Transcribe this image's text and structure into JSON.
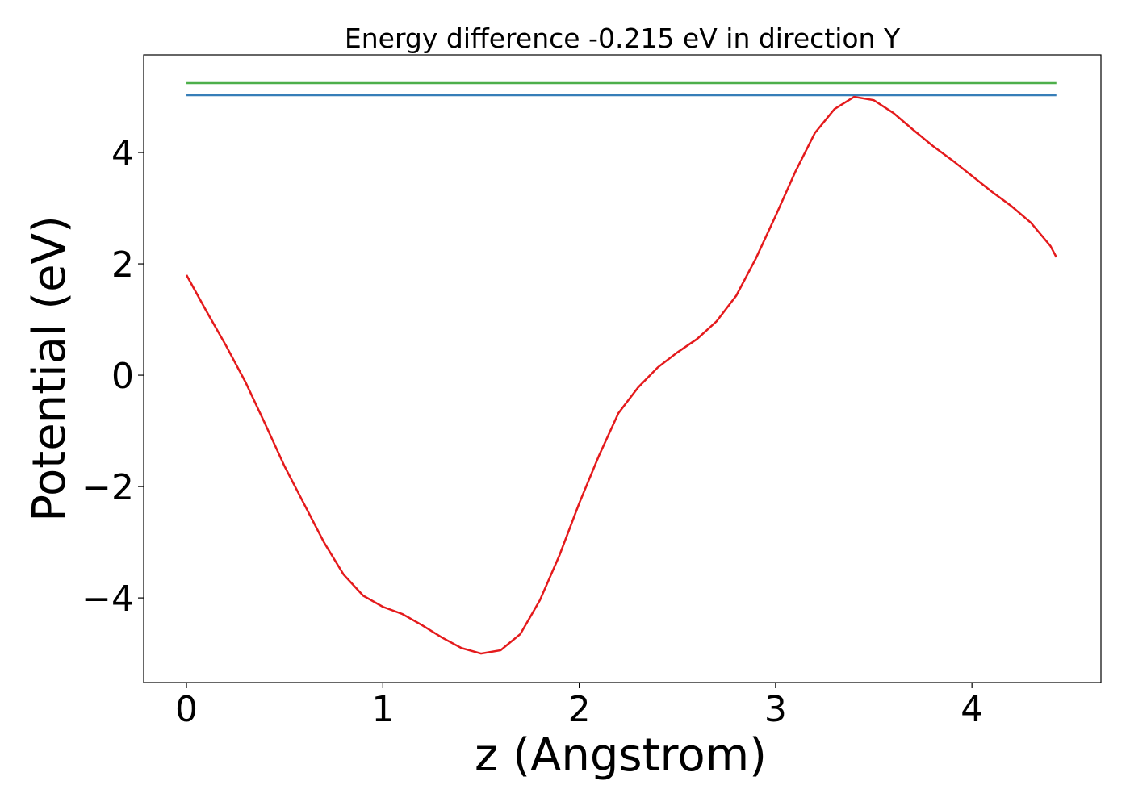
{
  "chart_data": {
    "type": "line",
    "title": "Energy difference -0.215 eV in direction Y",
    "xlabel": "z (Angstrom)",
    "ylabel": "Potential (eV)",
    "xlim": [
      -0.218,
      4.657
    ],
    "ylim": [
      -5.52,
      5.754
    ],
    "xticks": [
      0,
      1,
      2,
      3,
      4
    ],
    "yticks": [
      {
        "value": -4,
        "label": "−4"
      },
      {
        "value": -2,
        "label": "−2"
      },
      0,
      2,
      4
    ],
    "series": [
      {
        "color": "#4daf4a",
        "x": [
          0,
          4.43
        ],
        "values": [
          5.246,
          5.246
        ]
      },
      {
        "color": "#377eb8",
        "x": [
          0,
          4.43
        ],
        "values": [
          5.03,
          5.03
        ]
      },
      {
        "color": "#e41a1c",
        "x": [
          0,
          0.1,
          0.2,
          0.3,
          0.4,
          0.5,
          0.6,
          0.7,
          0.8,
          0.9,
          1.0,
          1.1,
          1.2,
          1.3,
          1.4,
          1.5,
          1.6,
          1.7,
          1.8,
          1.9,
          2.0,
          2.1,
          2.2,
          2.3,
          2.4,
          2.5,
          2.6,
          2.7,
          2.8,
          2.9,
          3.0,
          3.1,
          3.2,
          3.3,
          3.4,
          3.5,
          3.6,
          3.7,
          3.8,
          3.9,
          4.0,
          4.1,
          4.2,
          4.3,
          4.4,
          4.43
        ],
        "values": [
          1.8,
          1.16,
          0.54,
          -0.12,
          -0.87,
          -1.64,
          -2.32,
          -3.0,
          -3.58,
          -3.96,
          -4.16,
          -4.29,
          -4.49,
          -4.71,
          -4.9,
          -5.0,
          -4.94,
          -4.65,
          -4.04,
          -3.23,
          -2.3,
          -1.45,
          -0.68,
          -0.22,
          0.14,
          0.41,
          0.65,
          0.97,
          1.43,
          2.1,
          2.86,
          3.65,
          4.35,
          4.78,
          5.0,
          4.94,
          4.71,
          4.41,
          4.12,
          3.86,
          3.58,
          3.3,
          3.04,
          2.74,
          2.32,
          2.12
        ]
      }
    ]
  }
}
